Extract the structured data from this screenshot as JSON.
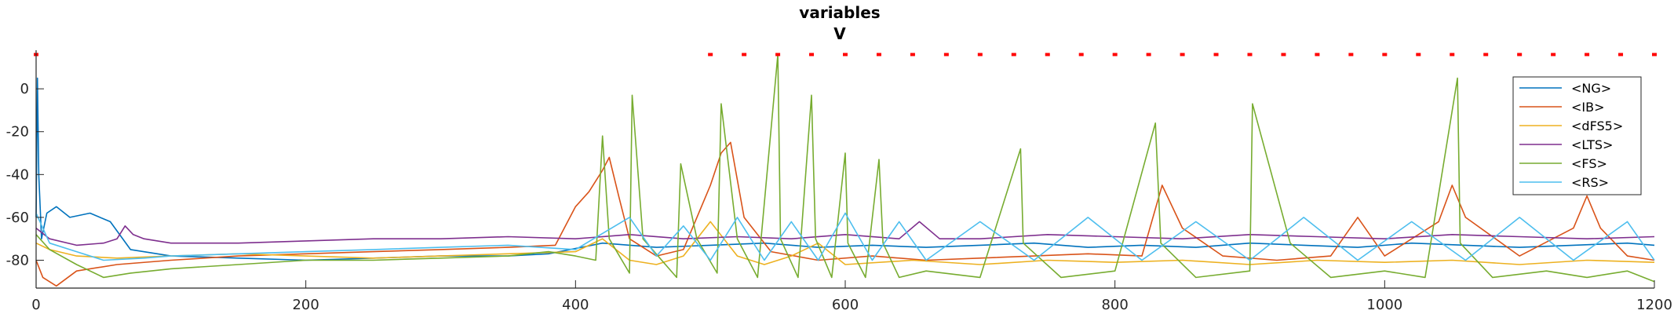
{
  "chart_data": {
    "type": "line",
    "title": "variables",
    "subtitle": "V",
    "xlim": [
      0,
      1200
    ],
    "ylim": [
      -93,
      18
    ],
    "x_ticks": [
      "0",
      "200",
      "400",
      "600",
      "800",
      "1000",
      "1200"
    ],
    "y_ticks": [
      "0",
      "-20",
      "-40",
      "-60",
      "-80"
    ],
    "grid": false,
    "legend_position": "top-right",
    "series": [
      {
        "name": "<NG>",
        "color": "#0072BD",
        "x": [
          0,
          1,
          2,
          4,
          8,
          15,
          25,
          40,
          55,
          70,
          100,
          150,
          200,
          250,
          300,
          350,
          380,
          420,
          460,
          500,
          540,
          580,
          620,
          660,
          700,
          740,
          780,
          820,
          860,
          900,
          940,
          980,
          1020,
          1060,
          1100,
          1140,
          1180,
          1200
        ],
        "y": [
          -60,
          5,
          -40,
          -70,
          -58,
          -55,
          -60,
          -58,
          -62,
          -75,
          -78,
          -79,
          -80,
          -79,
          -78,
          -78,
          -77,
          -72,
          -74,
          -73,
          -72,
          -74,
          -73,
          -74,
          -73,
          -72,
          -74,
          -73,
          -74,
          -72,
          -73,
          -74,
          -72,
          -73,
          -74,
          -73,
          -72,
          -73
        ]
      },
      {
        "name": "<IB>",
        "color": "#D95319",
        "x": [
          0,
          5,
          15,
          30,
          60,
          100,
          150,
          200,
          250,
          300,
          350,
          385,
          400,
          410,
          420,
          425,
          432,
          440,
          460,
          480,
          500,
          508,
          515,
          525,
          545,
          580,
          620,
          660,
          700,
          740,
          780,
          820,
          835,
          850,
          880,
          920,
          960,
          980,
          1000,
          1040,
          1050,
          1060,
          1100,
          1140,
          1150,
          1160,
          1180,
          1200
        ],
        "y": [
          -80,
          -88,
          -92,
          -85,
          -82,
          -80,
          -78,
          -77,
          -76,
          -75,
          -74,
          -73,
          -55,
          -48,
          -38,
          -32,
          -50,
          -70,
          -78,
          -75,
          -45,
          -30,
          -25,
          -60,
          -76,
          -80,
          -78,
          -80,
          -79,
          -78,
          -77,
          -78,
          -45,
          -65,
          -78,
          -80,
          -78,
          -60,
          -78,
          -62,
          -45,
          -60,
          -78,
          -65,
          -50,
          -65,
          -78,
          -80
        ]
      },
      {
        "name": "<dFS5>",
        "color": "#EDB120",
        "x": [
          0,
          10,
          30,
          60,
          100,
          150,
          200,
          250,
          300,
          350,
          400,
          420,
          440,
          460,
          480,
          500,
          520,
          540,
          560,
          580,
          600,
          650,
          700,
          750,
          800,
          850,
          900,
          950,
          1000,
          1050,
          1100,
          1150,
          1200
        ],
        "y": [
          -72,
          -75,
          -78,
          -79,
          -78,
          -77,
          -78,
          -79,
          -78,
          -77,
          -76,
          -70,
          -80,
          -82,
          -78,
          -62,
          -78,
          -82,
          -78,
          -72,
          -82,
          -80,
          -82,
          -80,
          -81,
          -80,
          -82,
          -80,
          -81,
          -80,
          -82,
          -80,
          -81
        ]
      },
      {
        "name": "<LTS>",
        "color": "#7E2F8E",
        "x": [
          0,
          10,
          30,
          50,
          60,
          66,
          72,
          80,
          100,
          150,
          200,
          250,
          300,
          350,
          400,
          440,
          480,
          520,
          560,
          600,
          640,
          655,
          670,
          700,
          750,
          800,
          850,
          900,
          950,
          1000,
          1050,
          1100,
          1150,
          1200
        ],
        "y": [
          -65,
          -70,
          -73,
          -72,
          -70,
          -64,
          -68,
          -70,
          -72,
          -72,
          -71,
          -70,
          -70,
          -69,
          -70,
          -68,
          -70,
          -69,
          -70,
          -68,
          -70,
          -62,
          -70,
          -70,
          -68,
          -69,
          -70,
          -68,
          -69,
          -70,
          -68,
          -69,
          -70,
          -69
        ]
      },
      {
        "name": "<FS>",
        "color": "#77AC30",
        "x": [
          0,
          10,
          30,
          50,
          70,
          100,
          150,
          200,
          250,
          300,
          350,
          380,
          400,
          415,
          420,
          425,
          440,
          442,
          450,
          475,
          478,
          490,
          505,
          508,
          520,
          535,
          550,
          552,
          565,
          575,
          578,
          590,
          600,
          602,
          615,
          625,
          628,
          640,
          660,
          700,
          730,
          732,
          760,
          800,
          830,
          834,
          860,
          900,
          902,
          930,
          960,
          1000,
          1030,
          1054,
          1056,
          1080,
          1120,
          1150,
          1180,
          1200
        ],
        "y": [
          -68,
          -75,
          -82,
          -88,
          -86,
          -84,
          -82,
          -80,
          -80,
          -79,
          -78,
          -76,
          -78,
          -80,
          -22,
          -70,
          -86,
          -3,
          -70,
          -88,
          -35,
          -70,
          -86,
          -7,
          -70,
          -88,
          16,
          -70,
          -88,
          -3,
          -70,
          -88,
          -30,
          -72,
          -88,
          -33,
          -72,
          -88,
          -85,
          -88,
          -28,
          -72,
          -88,
          -85,
          -16,
          -72,
          -88,
          -85,
          -7,
          -72,
          -88,
          -85,
          -88,
          5,
          -72,
          -88,
          -85,
          -88,
          -85,
          -90
        ]
      },
      {
        "name": "<RS>",
        "color": "#4DBEEE",
        "x": [
          0,
          10,
          30,
          50,
          80,
          100,
          150,
          200,
          250,
          300,
          350,
          400,
          440,
          460,
          480,
          500,
          520,
          540,
          560,
          580,
          600,
          620,
          640,
          660,
          700,
          740,
          780,
          820,
          860,
          900,
          940,
          980,
          1020,
          1060,
          1100,
          1140,
          1180,
          1200
        ],
        "y": [
          -58,
          -72,
          -76,
          -80,
          -79,
          -78,
          -77,
          -76,
          -75,
          -74,
          -73,
          -75,
          -60,
          -78,
          -64,
          -80,
          -60,
          -80,
          -62,
          -80,
          -58,
          -80,
          -62,
          -80,
          -62,
          -80,
          -60,
          -80,
          -62,
          -80,
          -60,
          -80,
          -62,
          -80,
          -60,
          -80,
          -62,
          -80
        ]
      }
    ],
    "red_markers": {
      "color": "#FF0000",
      "y": 16,
      "x": [
        0,
        500,
        525,
        550,
        575,
        600,
        625,
        650,
        675,
        700,
        725,
        750,
        775,
        800,
        825,
        850,
        875,
        900,
        925,
        950,
        975,
        1000,
        1025,
        1050,
        1075,
        1100,
        1125,
        1150,
        1175,
        1200
      ]
    }
  }
}
